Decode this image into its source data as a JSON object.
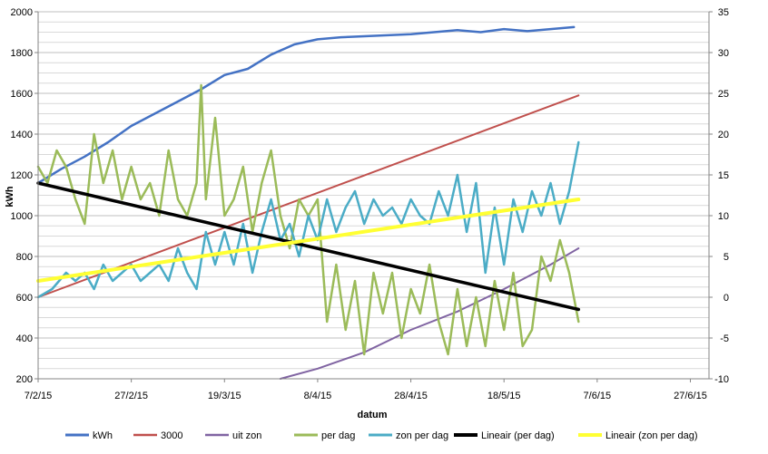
{
  "chart_data": {
    "type": "line",
    "title": "",
    "xlabel": "datum",
    "ylabel": "kWh",
    "y2label": "",
    "x_tick_labels": [
      "7/2/15",
      "27/2/15",
      "19/3/15",
      "8/4/15",
      "28/4/15",
      "18/5/15",
      "7/6/15",
      "27/6/15"
    ],
    "x_tick_days": [
      0,
      20,
      40,
      60,
      80,
      100,
      120,
      140
    ],
    "xlim_days": [
      0,
      144
    ],
    "ylim": [
      200,
      2000
    ],
    "y_ticks": [
      200,
      400,
      600,
      800,
      1000,
      1200,
      1400,
      1600,
      1800,
      2000
    ],
    "y2lim": [
      -10,
      35
    ],
    "y2_ticks": [
      -10,
      -5,
      0,
      5,
      10,
      15,
      20,
      25,
      30,
      35
    ],
    "grid": true,
    "legend_position": "bottom",
    "series": [
      {
        "name": "kWh",
        "axis": "left",
        "color": "#4472C4",
        "width": 2.5,
        "points": [
          [
            0,
            1160
          ],
          [
            5,
            1230
          ],
          [
            10,
            1290
          ],
          [
            15,
            1360
          ],
          [
            20,
            1440
          ],
          [
            25,
            1500
          ],
          [
            30,
            1560
          ],
          [
            35,
            1620
          ],
          [
            40,
            1690
          ],
          [
            45,
            1720
          ],
          [
            50,
            1790
          ],
          [
            55,
            1840
          ],
          [
            60,
            1865
          ],
          [
            65,
            1875
          ],
          [
            70,
            1880
          ],
          [
            75,
            1885
          ],
          [
            80,
            1890
          ],
          [
            85,
            1900
          ],
          [
            90,
            1910
          ],
          [
            95,
            1900
          ],
          [
            100,
            1915
          ],
          [
            105,
            1905
          ],
          [
            110,
            1915
          ],
          [
            115,
            1925
          ]
        ]
      },
      {
        "name": "3000",
        "axis": "left",
        "color": "#C0504D",
        "width": 2,
        "points": [
          [
            0,
            600
          ],
          [
            116,
            1590
          ]
        ]
      },
      {
        "name": "uit zon",
        "axis": "left",
        "color": "#8064A2",
        "width": 2,
        "points": [
          [
            52,
            200
          ],
          [
            60,
            250
          ],
          [
            70,
            330
          ],
          [
            80,
            440
          ],
          [
            90,
            530
          ],
          [
            100,
            640
          ],
          [
            110,
            760
          ],
          [
            116,
            840
          ]
        ]
      },
      {
        "name": "per dag",
        "axis": "right",
        "color": "#9BBB59",
        "width": 2.5,
        "points": [
          [
            0,
            16
          ],
          [
            2,
            14
          ],
          [
            4,
            18
          ],
          [
            6,
            16
          ],
          [
            8,
            12
          ],
          [
            10,
            9
          ],
          [
            12,
            20
          ],
          [
            14,
            14
          ],
          [
            16,
            18
          ],
          [
            18,
            12
          ],
          [
            20,
            16
          ],
          [
            22,
            12
          ],
          [
            24,
            14
          ],
          [
            26,
            10
          ],
          [
            28,
            18
          ],
          [
            30,
            12
          ],
          [
            32,
            10
          ],
          [
            34,
            14
          ],
          [
            35,
            26
          ],
          [
            36,
            12
          ],
          [
            38,
            22
          ],
          [
            40,
            10
          ],
          [
            42,
            12
          ],
          [
            44,
            16
          ],
          [
            46,
            8
          ],
          [
            48,
            14
          ],
          [
            50,
            18
          ],
          [
            52,
            10
          ],
          [
            54,
            6
          ],
          [
            56,
            12
          ],
          [
            58,
            10
          ],
          [
            60,
            12
          ],
          [
            62,
            -3
          ],
          [
            64,
            4
          ],
          [
            66,
            -4
          ],
          [
            68,
            2
          ],
          [
            70,
            -7
          ],
          [
            72,
            3
          ],
          [
            74,
            -2
          ],
          [
            76,
            3
          ],
          [
            78,
            -5
          ],
          [
            80,
            1
          ],
          [
            82,
            -2
          ],
          [
            84,
            4
          ],
          [
            86,
            -3
          ],
          [
            88,
            -7
          ],
          [
            90,
            1
          ],
          [
            92,
            -6
          ],
          [
            94,
            0
          ],
          [
            96,
            -6
          ],
          [
            98,
            2
          ],
          [
            100,
            -4
          ],
          [
            102,
            3
          ],
          [
            104,
            -6
          ],
          [
            106,
            -4
          ],
          [
            108,
            5
          ],
          [
            110,
            2
          ],
          [
            112,
            7
          ],
          [
            114,
            3
          ],
          [
            116,
            -3
          ]
        ]
      },
      {
        "name": "zon per dag",
        "axis": "right",
        "color": "#4BACC6",
        "width": 2.5,
        "points": [
          [
            0,
            0
          ],
          [
            3,
            1
          ],
          [
            6,
            3
          ],
          [
            8,
            2
          ],
          [
            10,
            3
          ],
          [
            12,
            1
          ],
          [
            14,
            4
          ],
          [
            16,
            2
          ],
          [
            18,
            3
          ],
          [
            20,
            4
          ],
          [
            22,
            2
          ],
          [
            24,
            3
          ],
          [
            26,
            4
          ],
          [
            28,
            2
          ],
          [
            30,
            6
          ],
          [
            32,
            3
          ],
          [
            34,
            1
          ],
          [
            36,
            8
          ],
          [
            38,
            4
          ],
          [
            40,
            8
          ],
          [
            42,
            4
          ],
          [
            44,
            9
          ],
          [
            46,
            3
          ],
          [
            48,
            8
          ],
          [
            50,
            12
          ],
          [
            52,
            7
          ],
          [
            54,
            9
          ],
          [
            56,
            5
          ],
          [
            58,
            10
          ],
          [
            60,
            7
          ],
          [
            62,
            12
          ],
          [
            64,
            8
          ],
          [
            66,
            11
          ],
          [
            68,
            13
          ],
          [
            70,
            9
          ],
          [
            72,
            12
          ],
          [
            74,
            10
          ],
          [
            76,
            11
          ],
          [
            78,
            9
          ],
          [
            80,
            12
          ],
          [
            82,
            10
          ],
          [
            84,
            9
          ],
          [
            86,
            13
          ],
          [
            88,
            10
          ],
          [
            90,
            15
          ],
          [
            92,
            8
          ],
          [
            94,
            14
          ],
          [
            96,
            3
          ],
          [
            98,
            11
          ],
          [
            100,
            4
          ],
          [
            102,
            12
          ],
          [
            104,
            8
          ],
          [
            106,
            13
          ],
          [
            108,
            10
          ],
          [
            110,
            14
          ],
          [
            112,
            9
          ],
          [
            114,
            13
          ],
          [
            116,
            19
          ]
        ]
      },
      {
        "name": "Lineair (per dag)",
        "axis": "right",
        "color": "#000000",
        "width": 3.5,
        "points": [
          [
            0,
            14
          ],
          [
            116,
            -1.5
          ]
        ]
      },
      {
        "name": "Lineair (zon per dag)",
        "axis": "right",
        "color": "#FFFF33",
        "width": 4,
        "points": [
          [
            0,
            2
          ],
          [
            116,
            12
          ]
        ]
      }
    ]
  }
}
